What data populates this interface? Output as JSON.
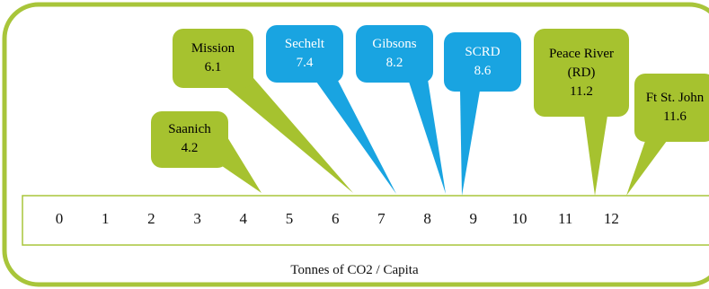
{
  "colors": {
    "green_fill": "#a6c22f",
    "green_border": "#a8c53a",
    "blue_fill": "#19a4e1",
    "green_text": "#000000",
    "blue_text": "#ffffff"
  },
  "axis": {
    "caption": "Tonnes of CO2 / Capita",
    "min": 0,
    "max": 12,
    "ticks": [
      "0",
      "1",
      "2",
      "3",
      "4",
      "5",
      "6",
      "7",
      "8",
      "9",
      "10",
      "11",
      "12"
    ]
  },
  "callouts": [
    {
      "name": "Saanich",
      "value_label": "4.2",
      "value": 4.2,
      "color": "green"
    },
    {
      "name": "Mission",
      "value_label": "6.1",
      "value": 6.1,
      "color": "green"
    },
    {
      "name": "Sechelt",
      "value_label": "7.4",
      "value": 7.4,
      "color": "blue"
    },
    {
      "name": "Gibsons",
      "value_label": "8.2",
      "value": 8.2,
      "color": "blue"
    },
    {
      "name": "SCRD",
      "value_label": "8.6",
      "value": 8.6,
      "color": "blue"
    },
    {
      "name": "Peace River\n(RD)",
      "value_label": "11.2",
      "value": 11.2,
      "color": "green"
    },
    {
      "name": "Ft St. John",
      "value_label": "11.6",
      "value": 11.6,
      "color": "green"
    }
  ]
}
